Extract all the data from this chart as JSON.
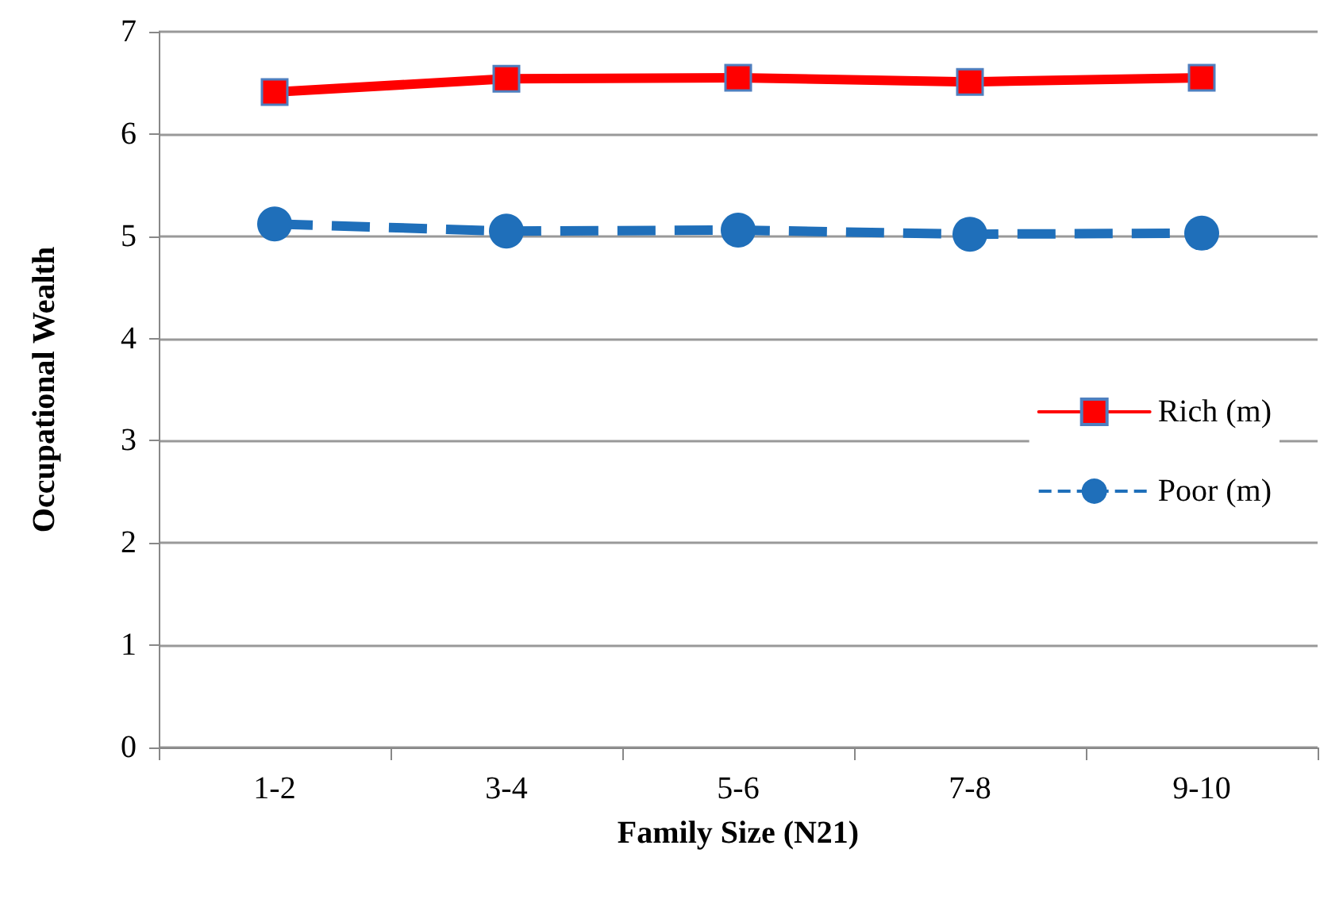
{
  "chart_data": {
    "type": "line",
    "xlabel": "Family Size (N21)",
    "ylabel": "Occupational Wealth",
    "categories": [
      "1-2",
      "3-4",
      "5-6",
      "7-8",
      "9-10"
    ],
    "series": [
      {
        "name": "Rich (m)",
        "color": "#ff0000",
        "values": [
          6.41,
          6.54,
          6.55,
          6.51,
          6.55
        ],
        "marker": "square",
        "line_style": "solid"
      },
      {
        "name": "Poor (m)",
        "color": "#1f6fba",
        "values": [
          5.12,
          5.05,
          5.06,
          5.02,
          5.03
        ],
        "marker": "circle",
        "line_style": "dashed"
      }
    ],
    "ylim": [
      0,
      7
    ],
    "yticks": [
      0,
      1,
      2,
      3,
      4,
      5,
      6,
      7
    ],
    "grid": "y",
    "legend": "right"
  }
}
